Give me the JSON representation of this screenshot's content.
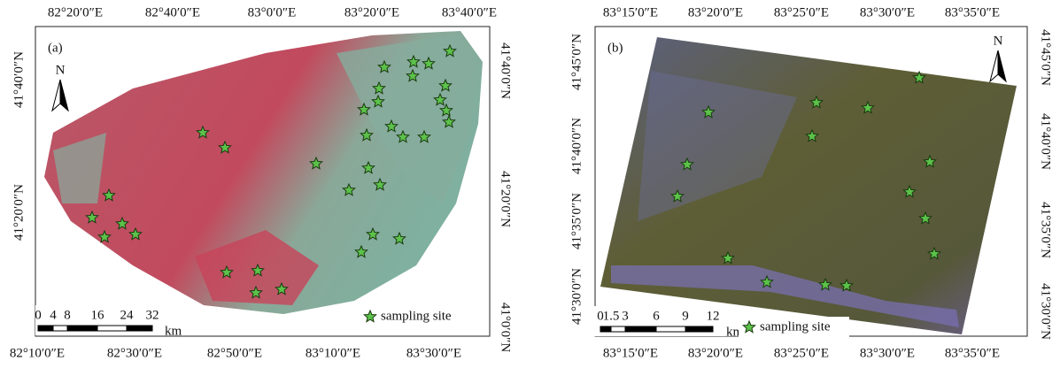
{
  "panels": [
    {
      "label": "(a)",
      "north": "N",
      "top_ticks": [
        "82°20′0″E",
        "82°40′0″E",
        "83°0′0″E",
        "83°20′0″E",
        "83°40′0″E"
      ],
      "bottom_ticks": [
        "82°10′0″E",
        "82°30′0″E",
        "82°50′0″E",
        "83°10′0″E",
        "83°30′0″E"
      ],
      "left_ticks": [
        "41°40′0″N",
        "41°20′0″N"
      ],
      "right_ticks": [
        "41°40′0″N",
        "41°20′0″N",
        "41°0′0″N"
      ],
      "scale": [
        0,
        4,
        8,
        16,
        24,
        32
      ],
      "scale_unit": "km",
      "legend": "sampling site"
    },
    {
      "label": "(b)",
      "north": "N",
      "top_ticks": [
        "83°15′0″E",
        "83°20′0″E",
        "83°25′0″E",
        "83°30′0″E",
        "83°35′0″E"
      ],
      "bottom_ticks": [
        "83°15′0″E",
        "83°20′0″E",
        "83°25′0″E",
        "83°30′0″E",
        "83°35′0″E"
      ],
      "left_ticks": [
        "41°45′0″N",
        "41°40′0″N",
        "41°35′0″N",
        "41°30′0″N"
      ],
      "right_ticks": [
        "41°45′0″N",
        "41°40′0″N",
        "41°35′0″N",
        "41°30′0″N"
      ],
      "scale": [
        0,
        1.5,
        3,
        6,
        9,
        12
      ],
      "scale_unit": "km",
      "legend": "sampling site"
    }
  ]
}
